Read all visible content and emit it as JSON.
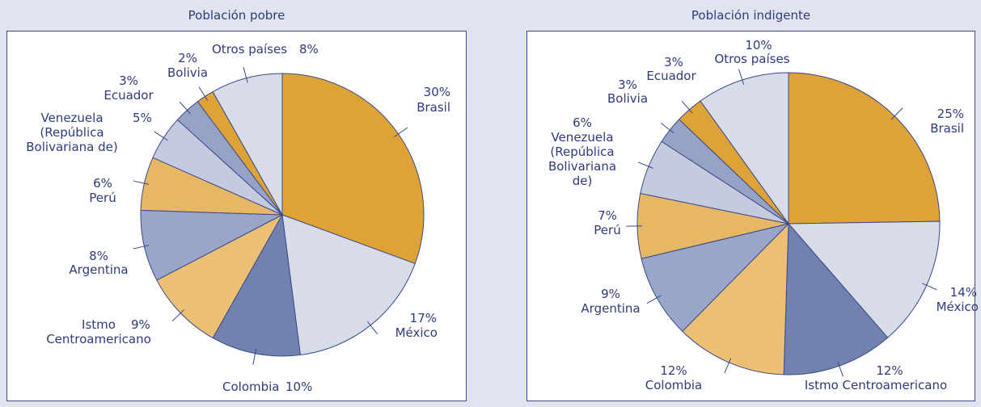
{
  "chart_data": [
    {
      "type": "pie",
      "title": "Población pobre",
      "categories": [
        "Brasil",
        "México",
        "Colombia",
        "Istmo Centroamericano",
        "Argentina",
        "Perú",
        "Venezuela (República Bolivariana de)",
        "Ecuador",
        "Bolivia",
        "Otros países"
      ],
      "values": [
        30,
        17,
        10,
        9,
        8,
        6,
        5,
        3,
        2,
        8
      ],
      "value_labels": [
        "30%",
        "17%",
        "10%",
        "9%",
        "8%",
        "6%",
        "5%",
        "3%",
        "2%",
        "8%"
      ],
      "colors": [
        "#dea236",
        "#d8dbe8",
        "#7281ad",
        "#ebc074",
        "#9aa6c9",
        "#e6b866",
        "#c5cade",
        "#97a3c6",
        "#dea236",
        "#d8dbe8"
      ]
    },
    {
      "type": "pie",
      "title": "Población indigente",
      "categories": [
        "Brasil",
        "México",
        "Istmo Centroamericano",
        "Colombia",
        "Argentina",
        "Perú",
        "Venezuela (República Bolivariana de)",
        "Bolivia",
        "Ecuador",
        "Otros países"
      ],
      "values": [
        25,
        14,
        12,
        12,
        9,
        7,
        6,
        3,
        3,
        10
      ],
      "value_labels": [
        "25%",
        "14%",
        "12%",
        "12%",
        "9%",
        "7%",
        "6%",
        "3%",
        "3%",
        "10%"
      ],
      "colors": [
        "#dea236",
        "#d8dbe8",
        "#7281ad",
        "#ebc074",
        "#9aa6c9",
        "#e6b866",
        "#c5cade",
        "#97a3c6",
        "#dea236",
        "#d8dbe8"
      ]
    }
  ]
}
